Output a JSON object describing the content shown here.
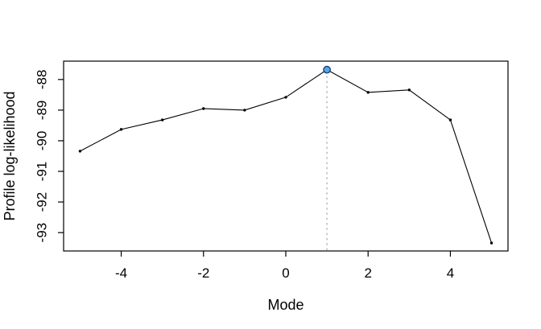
{
  "figure": {
    "background_color": "#ffffff"
  },
  "chart_data": {
    "type": "line",
    "title": "",
    "xlabel": "Mode",
    "ylabel": "Profile log-likelihood",
    "x": [
      -5,
      -4,
      -3,
      -2,
      -1,
      0,
      1,
      2,
      3,
      4,
      5
    ],
    "y": [
      -90.34,
      -89.63,
      -89.32,
      -88.95,
      -89.0,
      -88.58,
      -87.68,
      -88.42,
      -88.34,
      -89.32,
      -93.34
    ],
    "xlim": [
      -5.4,
      5.4
    ],
    "ylim": [
      -93.6,
      -87.4
    ],
    "x_ticks": [
      -4,
      -2,
      0,
      2,
      4
    ],
    "y_ticks": [
      -93,
      -92,
      -91,
      -90,
      -89,
      -88
    ],
    "grid": false,
    "legend": null,
    "box_around_plot": true,
    "colors": {
      "line": "#000000",
      "point": "#000000",
      "axis": "#000000",
      "text": "#000000",
      "vline": "#c8c8c8",
      "highlight_fill": "#55a5e6",
      "highlight_stroke": "#1a386e"
    },
    "vline": {
      "x": 1,
      "style": "dotted"
    },
    "highlight_point": {
      "x": 1,
      "y": -87.68
    }
  }
}
